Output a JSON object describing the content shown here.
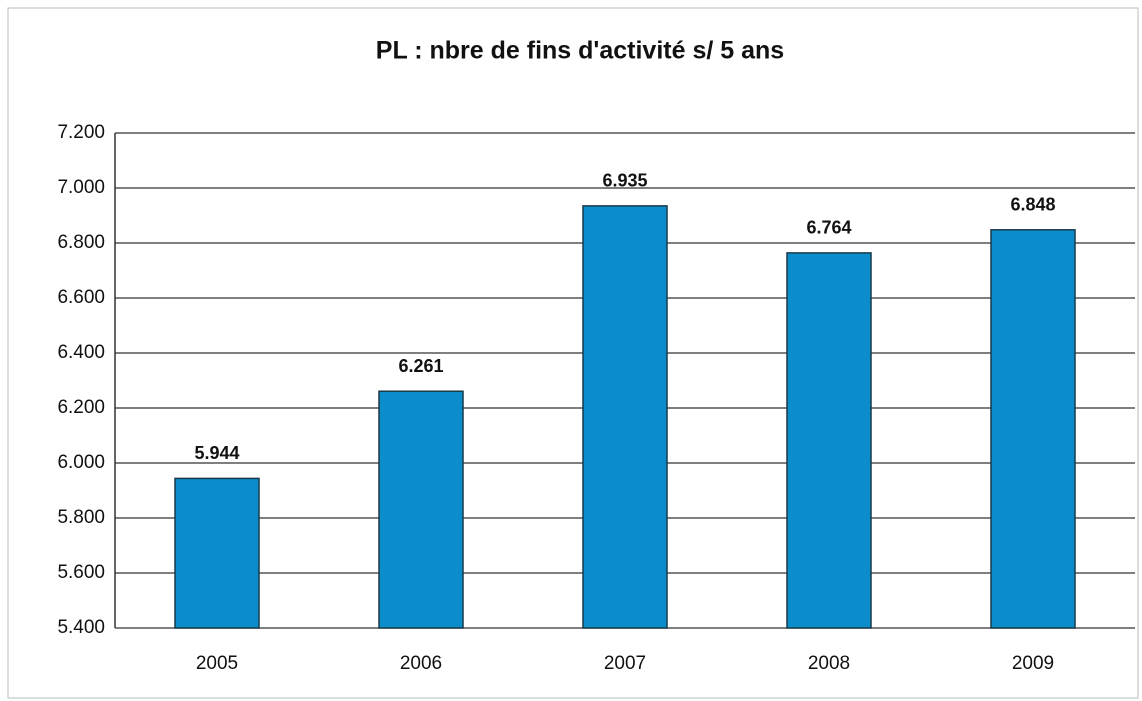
{
  "chart_data": {
    "type": "bar",
    "title": "PL : nbre de fins d'activité s/ 5 ans",
    "categories": [
      "2005",
      "2006",
      "2007",
      "2008",
      "2009"
    ],
    "values": [
      5944,
      6261,
      6935,
      6764,
      6848
    ],
    "value_labels": [
      "5.944",
      "6.261",
      "6.935",
      "6.764",
      "6.848"
    ],
    "color": "#0b8dcc",
    "ylim": [
      5400,
      7200
    ],
    "yticks": [
      {
        "value": 5400,
        "label": "5.400"
      },
      {
        "value": 5600,
        "label": "5.600"
      },
      {
        "value": 5800,
        "label": "5.800"
      },
      {
        "value": 6000,
        "label": "6.000"
      },
      {
        "value": 6200,
        "label": "6.200"
      },
      {
        "value": 6400,
        "label": "6.400"
      },
      {
        "value": 6600,
        "label": "6.600"
      },
      {
        "value": 6800,
        "label": "6.800"
      },
      {
        "value": 7000,
        "label": "7.000"
      },
      {
        "value": 7200,
        "label": "7.200"
      }
    ],
    "grid": true
  }
}
